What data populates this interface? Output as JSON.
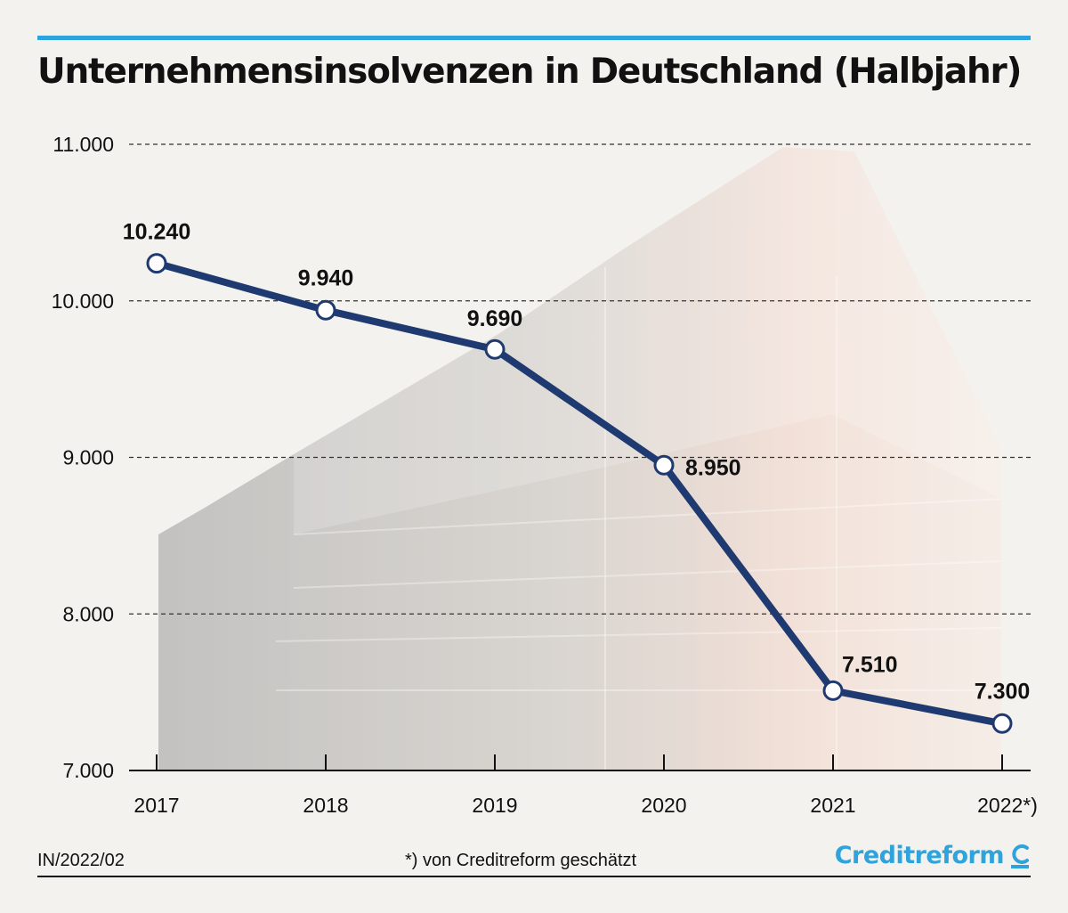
{
  "title": "Unternehmensinsolvenzen in Deutschland (Halbjahr)",
  "footer": {
    "code": "IN/2022/02",
    "note": "*) von Creditreform geschätzt",
    "brand": "Creditreform"
  },
  "colors": {
    "accent": "#2ea3dc",
    "line": "#1f3a70",
    "text": "#111111"
  },
  "chart_data": {
    "type": "line",
    "title": "Unternehmensinsolvenzen in Deutschland (Halbjahr)",
    "categories": [
      "2017",
      "2018",
      "2019",
      "2020",
      "2021",
      "2022*)"
    ],
    "values": [
      10240,
      9940,
      9690,
      8950,
      7510,
      7300
    ],
    "value_labels": [
      "10.240",
      "9.940",
      "9.690",
      "8.950",
      "7.510",
      "7.300"
    ],
    "yticks": [
      7000,
      8000,
      9000,
      10000,
      11000
    ],
    "ytick_labels": [
      "7.000",
      "8.000",
      "9.000",
      "10.000",
      "11.000"
    ],
    "ylim": [
      7000,
      11000
    ],
    "grid": "dashed horizontal",
    "legend": "none"
  }
}
